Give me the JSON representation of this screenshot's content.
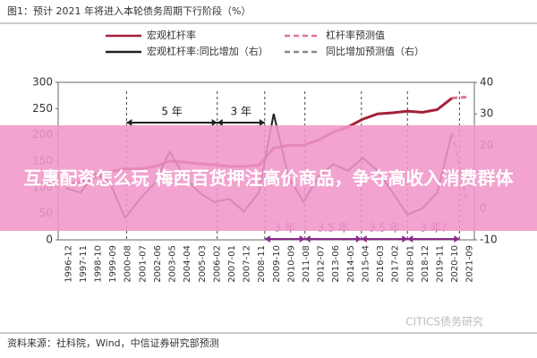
{
  "chart_data": {
    "type": "line",
    "title": "图1：预计 2021 年将进入本轮债务周期下行阶段（%）",
    "categories": [
      "1996-12",
      "1997-11",
      "1998-10",
      "1999-09",
      "2000-08",
      "2001-07",
      "2002-06",
      "2003-05",
      "2004-04",
      "2005-03",
      "2006-02",
      "2007-01",
      "2007-12",
      "2008-11",
      "2009-10",
      "2010-09",
      "2011-08",
      "2012-07",
      "2013-06",
      "2014-05",
      "2015-04",
      "2016-03",
      "2017-02",
      "2018-01",
      "2018-12",
      "2019-11",
      "2020-10",
      "2021-09"
    ],
    "series": [
      {
        "name": "宏观杠杆率",
        "color": "#a3213a",
        "dashed": false,
        "values": [
          105,
          110,
          120,
          130,
          135,
          135,
          140,
          150,
          148,
          145,
          143,
          140,
          140,
          142,
          175,
          180,
          180,
          190,
          205,
          215,
          230,
          240,
          242,
          245,
          243,
          248,
          270,
          null
        ]
      },
      {
        "name": "杠杆率预测值",
        "color": "#e27393",
        "dashed": true,
        "values": [
          null,
          null,
          null,
          null,
          null,
          null,
          null,
          null,
          null,
          null,
          null,
          null,
          null,
          null,
          null,
          null,
          null,
          null,
          null,
          null,
          null,
          null,
          null,
          null,
          null,
          null,
          270,
          272
        ]
      },
      {
        "name": "宏观杠杆率:同比增加（右）",
        "color": "#222222",
        "dashed": false,
        "axis": "y2",
        "values": [
          6.5,
          5,
          11,
          8,
          -3,
          3,
          8,
          18,
          10,
          5,
          2,
          3,
          -1,
          5,
          30,
          10,
          2,
          10,
          14,
          12,
          16,
          12,
          5,
          -2,
          0,
          5,
          24,
          null
        ]
      },
      {
        "name": "同比增加预测值（右）",
        "color": "#8a8a8a",
        "dashed": true,
        "axis": "y2",
        "values": [
          null,
          null,
          null,
          null,
          null,
          null,
          null,
          null,
          null,
          null,
          null,
          null,
          null,
          null,
          null,
          null,
          null,
          null,
          null,
          null,
          null,
          null,
          null,
          null,
          null,
          null,
          24,
          2
        ]
      }
    ],
    "ylim": [
      0,
      300
    ],
    "yticks": [
      0,
      50,
      100,
      150,
      200,
      250,
      300
    ],
    "y2lim": [
      -10,
      40
    ],
    "y2ticks": [
      -10,
      0,
      10,
      20,
      30,
      40
    ],
    "annotations": [
      "5 年",
      "3 年",
      "3 年",
      "3.5 年",
      "3.5 年",
      "3 年?"
    ],
    "source": "资料来源：社科院，Wind，中信证券研究部预测",
    "watermark": "CITICS债务研究",
    "banner": "互惠配资怎么玩 梅西百货押注高价商品，争夺高收入消费群体"
  }
}
